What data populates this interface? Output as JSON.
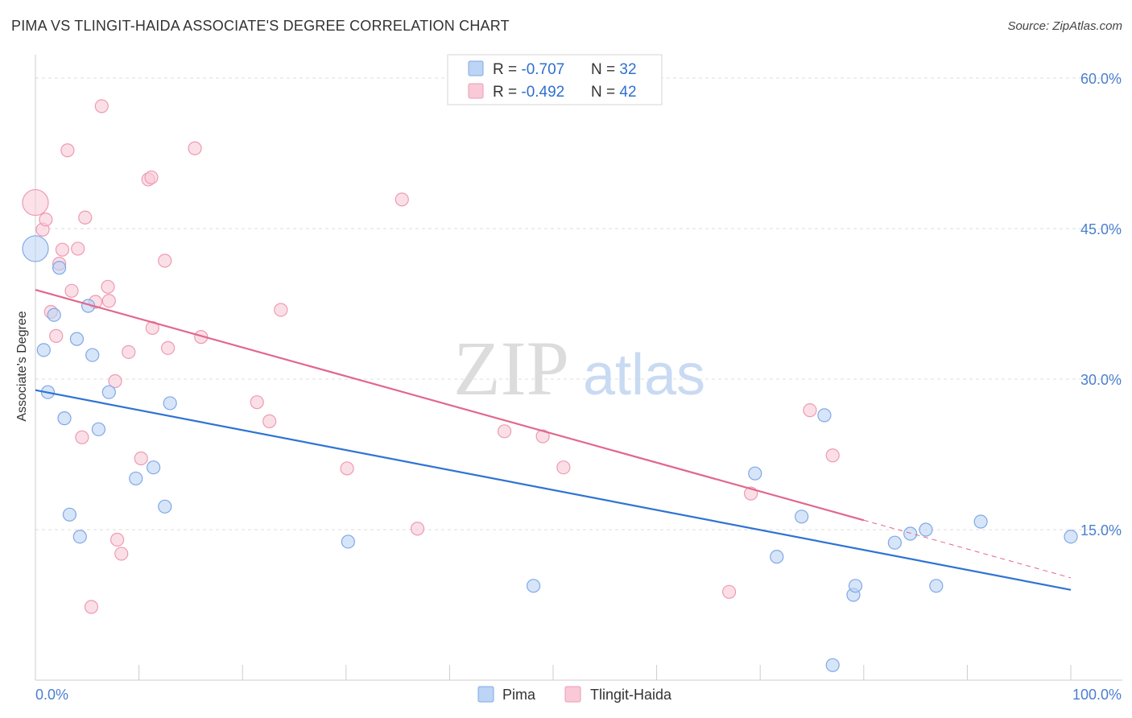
{
  "title": "PIMA VS TLINGIT-HAIDA ASSOCIATE'S DEGREE CORRELATION CHART",
  "source": "Source: ZipAtlas.com",
  "watermark": {
    "zip": "ZIP",
    "atlas": "atlas"
  },
  "colors": {
    "pima_fill": "#bcd4f5",
    "pima_stroke": "#7fa8e6",
    "pima_line": "#2f73d3",
    "tlingit_fill": "#f9c9d7",
    "tlingit_stroke": "#ee9ab3",
    "tlingit_line": "#e2678e",
    "grid": "#dddddd",
    "axis": "#cccccc",
    "tick_text": "#4a7fd0"
  },
  "legend": {
    "rows": [
      {
        "r_label": "R = ",
        "r_value": "-0.707",
        "n_label": "N = ",
        "n_value": "32"
      },
      {
        "r_label": "R = ",
        "r_value": "-0.492",
        "n_label": "N = ",
        "n_value": "42"
      }
    ]
  },
  "bottom_legend": [
    "Pima",
    "Tlingit-Haida"
  ],
  "chart_data": {
    "type": "scatter",
    "xlabel": "",
    "ylabel": "Associate's Degree",
    "xlim": [
      0,
      100
    ],
    "ylim": [
      0,
      60
    ],
    "x_tick_labels": [
      "0.0%",
      "100.0%"
    ],
    "y_ticks": [
      15,
      30,
      45,
      60
    ],
    "y_tick_labels": [
      "15.0%",
      "30.0%",
      "45.0%",
      "60.0%"
    ],
    "grid": true,
    "series": [
      {
        "name": "Pima",
        "r": -0.707,
        "n": 32,
        "trend": {
          "x": [
            0,
            100
          ],
          "y": [
            28.9,
            9.0
          ],
          "dashed_from": null
        },
        "points": [
          {
            "x": 0.0,
            "y": 43.0,
            "big": true
          },
          {
            "x": 0.8,
            "y": 32.9
          },
          {
            "x": 1.2,
            "y": 28.7
          },
          {
            "x": 1.8,
            "y": 36.4
          },
          {
            "x": 2.3,
            "y": 41.1
          },
          {
            "x": 2.8,
            "y": 26.1
          },
          {
            "x": 3.3,
            "y": 16.5
          },
          {
            "x": 4.0,
            "y": 34.0
          },
          {
            "x": 4.3,
            "y": 14.3
          },
          {
            "x": 5.1,
            "y": 37.3
          },
          {
            "x": 5.5,
            "y": 32.4
          },
          {
            "x": 6.1,
            "y": 25.0
          },
          {
            "x": 7.1,
            "y": 28.7
          },
          {
            "x": 9.7,
            "y": 20.1
          },
          {
            "x": 11.4,
            "y": 21.2
          },
          {
            "x": 12.5,
            "y": 17.3
          },
          {
            "x": 13.0,
            "y": 27.6
          },
          {
            "x": 30.2,
            "y": 13.8
          },
          {
            "x": 48.1,
            "y": 9.4
          },
          {
            "x": 69.5,
            "y": 20.6
          },
          {
            "x": 71.6,
            "y": 12.3
          },
          {
            "x": 74.0,
            "y": 16.3
          },
          {
            "x": 76.2,
            "y": 26.4
          },
          {
            "x": 77.0,
            "y": 1.5
          },
          {
            "x": 79.0,
            "y": 8.5
          },
          {
            "x": 79.2,
            "y": 9.4
          },
          {
            "x": 83.0,
            "y": 13.7
          },
          {
            "x": 84.5,
            "y": 14.6
          },
          {
            "x": 86.0,
            "y": 15.0
          },
          {
            "x": 87.0,
            "y": 9.4
          },
          {
            "x": 91.3,
            "y": 15.8
          },
          {
            "x": 100.0,
            "y": 14.3
          }
        ]
      },
      {
        "name": "Tlingit-Haida",
        "r": -0.492,
        "n": 42,
        "trend": {
          "x": [
            0,
            100
          ],
          "y": [
            38.9,
            10.2
          ],
          "dashed_from": 80
        },
        "points": [
          {
            "x": 0.0,
            "y": 47.6,
            "big": true
          },
          {
            "x": 0.7,
            "y": 44.9
          },
          {
            "x": 1.0,
            "y": 45.9
          },
          {
            "x": 1.5,
            "y": 36.7
          },
          {
            "x": 2.0,
            "y": 34.3
          },
          {
            "x": 2.3,
            "y": 41.5
          },
          {
            "x": 2.6,
            "y": 42.9
          },
          {
            "x": 3.1,
            "y": 52.8
          },
          {
            "x": 3.5,
            "y": 38.8
          },
          {
            "x": 4.1,
            "y": 43.0
          },
          {
            "x": 4.5,
            "y": 24.2
          },
          {
            "x": 4.8,
            "y": 46.1
          },
          {
            "x": 5.4,
            "y": 7.3
          },
          {
            "x": 5.8,
            "y": 37.7
          },
          {
            "x": 6.4,
            "y": 57.2
          },
          {
            "x": 7.0,
            "y": 39.2
          },
          {
            "x": 7.1,
            "y": 37.8
          },
          {
            "x": 7.7,
            "y": 29.8
          },
          {
            "x": 7.9,
            "y": 14.0
          },
          {
            "x": 8.3,
            "y": 12.6
          },
          {
            "x": 9.0,
            "y": 32.7
          },
          {
            "x": 10.2,
            "y": 22.1
          },
          {
            "x": 10.9,
            "y": 49.9
          },
          {
            "x": 11.2,
            "y": 50.1
          },
          {
            "x": 11.3,
            "y": 35.1
          },
          {
            "x": 12.5,
            "y": 41.8
          },
          {
            "x": 12.8,
            "y": 33.1
          },
          {
            "x": 15.4,
            "y": 53.0
          },
          {
            "x": 16.0,
            "y": 34.2
          },
          {
            "x": 21.4,
            "y": 27.7
          },
          {
            "x": 22.6,
            "y": 25.8
          },
          {
            "x": 23.7,
            "y": 36.9
          },
          {
            "x": 30.1,
            "y": 21.1
          },
          {
            "x": 35.4,
            "y": 47.9
          },
          {
            "x": 36.9,
            "y": 15.1
          },
          {
            "x": 45.3,
            "y": 24.8
          },
          {
            "x": 49.0,
            "y": 24.3
          },
          {
            "x": 51.0,
            "y": 21.2
          },
          {
            "x": 67.0,
            "y": 8.8
          },
          {
            "x": 69.1,
            "y": 18.6
          },
          {
            "x": 74.8,
            "y": 26.9
          },
          {
            "x": 77.0,
            "y": 22.4
          }
        ]
      }
    ]
  }
}
